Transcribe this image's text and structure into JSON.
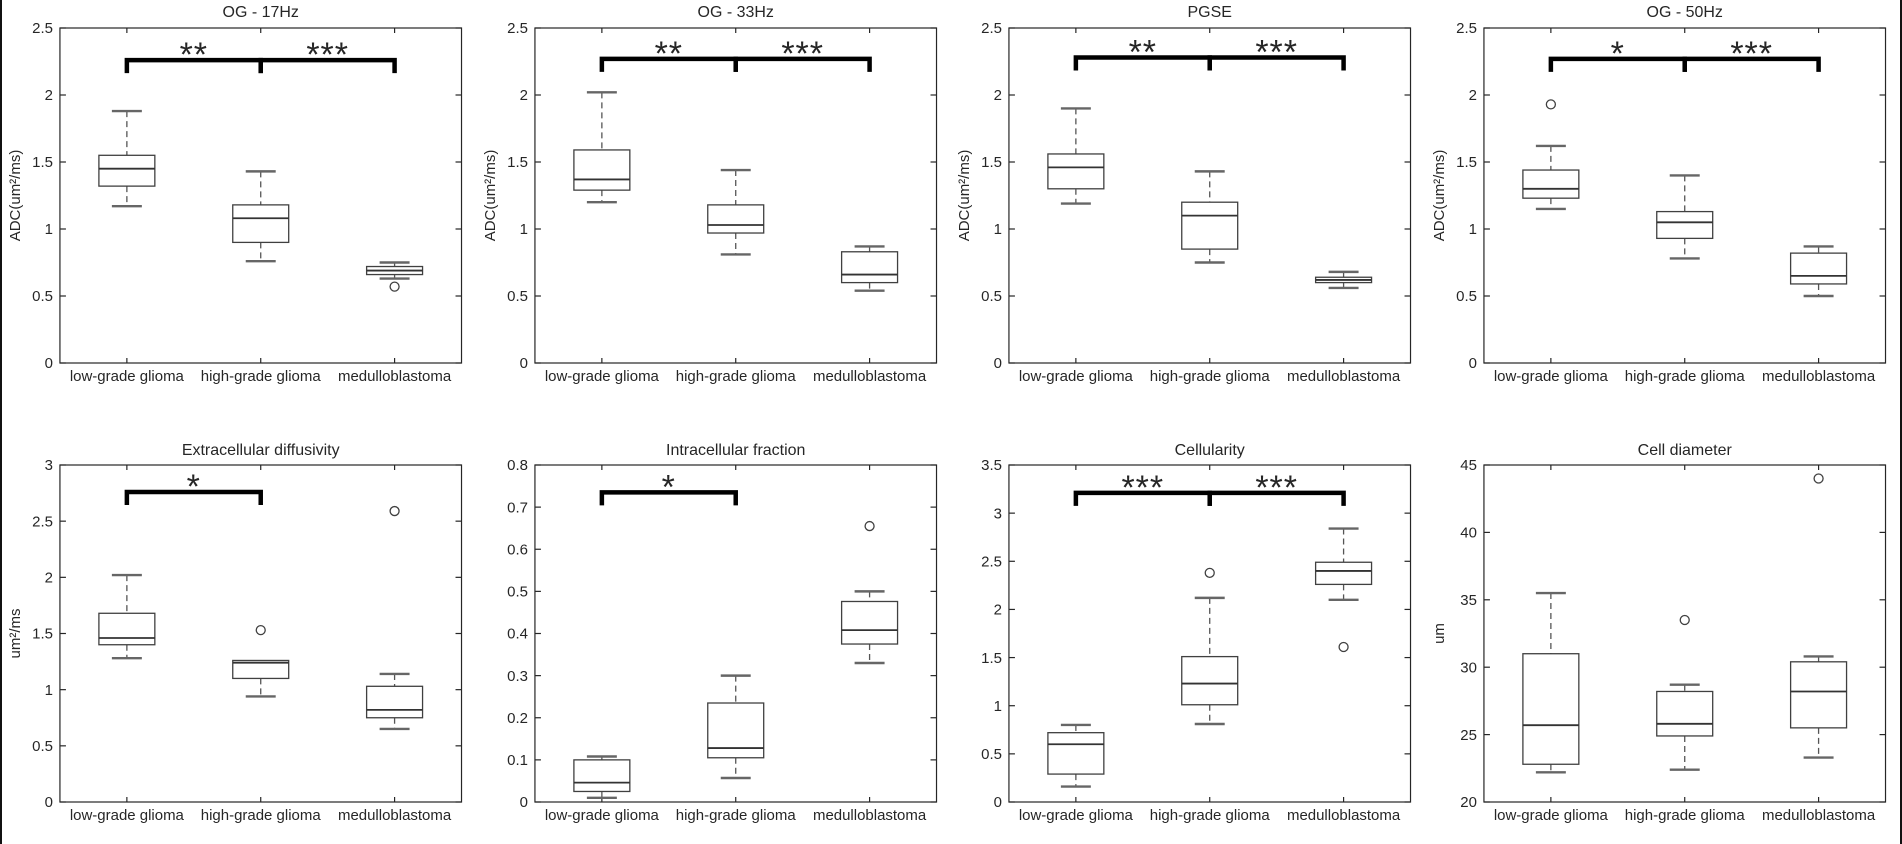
{
  "figure": {
    "background": "#ffffff",
    "frame_border_color": "#111111",
    "axis_color": "#262626",
    "box_edge_color": "#404040",
    "whisker_color": "#555555",
    "cap_color": "#666666",
    "median_color": "#333333",
    "outlier_color": "#404040",
    "significance_color": "#000000",
    "grid_rows": 2,
    "grid_cols": 4
  },
  "chart_data": [
    {
      "type": "boxplot",
      "title": "OG - 17Hz",
      "ylabel": "ADC(um²/ms)",
      "xlabel": "",
      "ylim": [
        0,
        2.5
      ],
      "yticks": [
        0,
        0.5,
        1,
        1.5,
        2,
        2.5
      ],
      "categories": [
        "low-grade glioma",
        "high-grade glioma",
        "medulloblastoma"
      ],
      "boxes": [
        {
          "category": "low-grade glioma",
          "whislo": 1.17,
          "q1": 1.32,
          "med": 1.45,
          "q3": 1.55,
          "whishi": 1.88,
          "outliers": []
        },
        {
          "category": "high-grade glioma",
          "whislo": 0.76,
          "q1": 0.9,
          "med": 1.08,
          "q3": 1.18,
          "whishi": 1.43,
          "outliers": []
        },
        {
          "category": "medulloblastoma",
          "whislo": 0.63,
          "q1": 0.66,
          "med": 0.69,
          "q3": 0.72,
          "whishi": 0.75,
          "outliers": [
            0.57
          ]
        }
      ],
      "significance": [
        {
          "from": 0,
          "to": 1,
          "label": "**",
          "y": 2.26
        },
        {
          "from": 1,
          "to": 2,
          "label": "***",
          "y": 2.26
        }
      ]
    },
    {
      "type": "boxplot",
      "title": "OG - 33Hz",
      "ylabel": "ADC(um²/ms)",
      "xlabel": "",
      "ylim": [
        0,
        2.5
      ],
      "yticks": [
        0,
        0.5,
        1,
        1.5,
        2,
        2.5
      ],
      "categories": [
        "low-grade glioma",
        "high-grade glioma",
        "medulloblastoma"
      ],
      "boxes": [
        {
          "category": "low-grade glioma",
          "whislo": 1.2,
          "q1": 1.29,
          "med": 1.37,
          "q3": 1.59,
          "whishi": 2.02,
          "outliers": []
        },
        {
          "category": "high-grade glioma",
          "whislo": 0.81,
          "q1": 0.97,
          "med": 1.03,
          "q3": 1.18,
          "whishi": 1.44,
          "outliers": []
        },
        {
          "category": "medulloblastoma",
          "whislo": 0.54,
          "q1": 0.6,
          "med": 0.66,
          "q3": 0.83,
          "whishi": 0.87,
          "outliers": []
        }
      ],
      "significance": [
        {
          "from": 0,
          "to": 1,
          "label": "**",
          "y": 2.27
        },
        {
          "from": 1,
          "to": 2,
          "label": "***",
          "y": 2.27
        }
      ]
    },
    {
      "type": "boxplot",
      "title": "PGSE",
      "ylabel": "ADC(um²/ms)",
      "xlabel": "",
      "ylim": [
        0,
        2.5
      ],
      "yticks": [
        0,
        0.5,
        1,
        1.5,
        2,
        2.5
      ],
      "categories": [
        "low-grade glioma",
        "high-grade glioma",
        "medulloblastoma"
      ],
      "boxes": [
        {
          "category": "low-grade glioma",
          "whislo": 1.19,
          "q1": 1.3,
          "med": 1.46,
          "q3": 1.56,
          "whishi": 1.9,
          "outliers": []
        },
        {
          "category": "high-grade glioma",
          "whislo": 0.75,
          "q1": 0.85,
          "med": 1.1,
          "q3": 1.2,
          "whishi": 1.43,
          "outliers": []
        },
        {
          "category": "medulloblastoma",
          "whislo": 0.56,
          "q1": 0.6,
          "med": 0.62,
          "q3": 0.64,
          "whishi": 0.68,
          "outliers": []
        }
      ],
      "significance": [
        {
          "from": 0,
          "to": 1,
          "label": "**",
          "y": 2.28
        },
        {
          "from": 1,
          "to": 2,
          "label": "***",
          "y": 2.28
        }
      ]
    },
    {
      "type": "boxplot",
      "title": "OG - 50Hz",
      "ylabel": "ADC(um²/ms)",
      "xlabel": "",
      "ylim": [
        0,
        2.5
      ],
      "yticks": [
        0,
        0.5,
        1,
        1.5,
        2,
        2.5
      ],
      "categories": [
        "low-grade glioma",
        "high-grade glioma",
        "medulloblastoma"
      ],
      "boxes": [
        {
          "category": "low-grade glioma",
          "whislo": 1.15,
          "q1": 1.23,
          "med": 1.3,
          "q3": 1.44,
          "whishi": 1.62,
          "outliers": [
            1.93
          ]
        },
        {
          "category": "high-grade glioma",
          "whislo": 0.78,
          "q1": 0.93,
          "med": 1.05,
          "q3": 1.13,
          "whishi": 1.4,
          "outliers": []
        },
        {
          "category": "medulloblastoma",
          "whislo": 0.5,
          "q1": 0.59,
          "med": 0.65,
          "q3": 0.82,
          "whishi": 0.87,
          "outliers": []
        }
      ],
      "significance": [
        {
          "from": 0,
          "to": 1,
          "label": "*",
          "y": 2.27
        },
        {
          "from": 1,
          "to": 2,
          "label": "***",
          "y": 2.27
        }
      ]
    },
    {
      "type": "boxplot",
      "title": "Extracellular diffusivity",
      "ylabel": "um²/ms",
      "xlabel": "",
      "ylim": [
        0,
        3
      ],
      "yticks": [
        0,
        0.5,
        1,
        1.5,
        2,
        2.5,
        3
      ],
      "categories": [
        "low-grade glioma",
        "high-grade glioma",
        "medulloblastoma"
      ],
      "boxes": [
        {
          "category": "low-grade glioma",
          "whislo": 1.28,
          "q1": 1.4,
          "med": 1.46,
          "q3": 1.68,
          "whishi": 2.02,
          "outliers": []
        },
        {
          "category": "high-grade glioma",
          "whislo": 0.94,
          "q1": 1.1,
          "med": 1.24,
          "q3": 1.26,
          "whishi": 1.26,
          "outliers": [
            1.53
          ]
        },
        {
          "category": "medulloblastoma",
          "whislo": 0.65,
          "q1": 0.75,
          "med": 0.82,
          "q3": 1.03,
          "whishi": 1.14,
          "outliers": [
            2.59
          ]
        }
      ],
      "significance": [
        {
          "from": 0,
          "to": 1,
          "label": "*",
          "y": 2.76
        }
      ]
    },
    {
      "type": "boxplot",
      "title": "Intracellular fraction",
      "ylabel": "",
      "xlabel": "",
      "ylim": [
        0,
        0.8
      ],
      "yticks": [
        0,
        0.1,
        0.2,
        0.3,
        0.4,
        0.5,
        0.6,
        0.7,
        0.8
      ],
      "categories": [
        "low-grade glioma",
        "high-grade glioma",
        "medulloblastoma"
      ],
      "boxes": [
        {
          "category": "low-grade glioma",
          "whislo": 0.01,
          "q1": 0.025,
          "med": 0.046,
          "q3": 0.1,
          "whishi": 0.108,
          "outliers": []
        },
        {
          "category": "high-grade glioma",
          "whislo": 0.057,
          "q1": 0.105,
          "med": 0.128,
          "q3": 0.235,
          "whishi": 0.3,
          "outliers": []
        },
        {
          "category": "medulloblastoma",
          "whislo": 0.33,
          "q1": 0.375,
          "med": 0.408,
          "q3": 0.476,
          "whishi": 0.5,
          "outliers": [
            0.655
          ]
        }
      ],
      "significance": [
        {
          "from": 0,
          "to": 1,
          "label": "*",
          "y": 0.735
        }
      ]
    },
    {
      "type": "boxplot",
      "title": "Cellularity",
      "ylabel": "",
      "xlabel": "",
      "ylim": [
        0,
        3.5
      ],
      "yticks": [
        0,
        0.5,
        1,
        1.5,
        2,
        2.5,
        3,
        3.5
      ],
      "categories": [
        "low-grade glioma",
        "high-grade glioma",
        "medulloblastoma"
      ],
      "boxes": [
        {
          "category": "low-grade glioma",
          "whislo": 0.16,
          "q1": 0.29,
          "med": 0.6,
          "q3": 0.72,
          "whishi": 0.8,
          "outliers": []
        },
        {
          "category": "high-grade glioma",
          "whislo": 0.81,
          "q1": 1.01,
          "med": 1.23,
          "q3": 1.51,
          "whishi": 2.12,
          "outliers": [
            2.38
          ]
        },
        {
          "category": "medulloblastoma",
          "whislo": 2.1,
          "q1": 2.26,
          "med": 2.4,
          "q3": 2.49,
          "whishi": 2.84,
          "outliers": [
            1.61
          ]
        }
      ],
      "significance": [
        {
          "from": 0,
          "to": 1,
          "label": "***",
          "y": 3.21
        },
        {
          "from": 1,
          "to": 2,
          "label": "***",
          "y": 3.21
        }
      ]
    },
    {
      "type": "boxplot",
      "title": "Cell diameter",
      "ylabel": "um",
      "xlabel": "",
      "ylim": [
        20,
        45
      ],
      "yticks": [
        20,
        25,
        30,
        35,
        40,
        45
      ],
      "categories": [
        "low-grade glioma",
        "high-grade glioma",
        "medulloblastoma"
      ],
      "boxes": [
        {
          "category": "low-grade glioma",
          "whislo": 22.2,
          "q1": 22.8,
          "med": 25.7,
          "q3": 31.0,
          "whishi": 35.5,
          "outliers": []
        },
        {
          "category": "high-grade glioma",
          "whislo": 22.4,
          "q1": 24.9,
          "med": 25.8,
          "q3": 28.2,
          "whishi": 28.7,
          "outliers": [
            33.5
          ]
        },
        {
          "category": "medulloblastoma",
          "whislo": 23.3,
          "q1": 25.5,
          "med": 28.2,
          "q3": 30.4,
          "whishi": 30.8,
          "outliers": [
            44.0
          ]
        }
      ],
      "significance": []
    }
  ]
}
